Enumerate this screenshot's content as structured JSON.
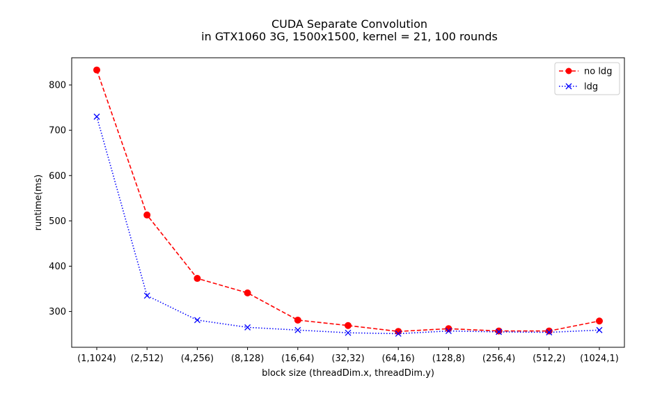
{
  "chart_data": {
    "type": "line",
    "title": "CUDA Separate Convolution",
    "subtitle": "in GTX1060 3G, 1500x1500, kernel = 21, 100 rounds",
    "xlabel": "block size (threadDim.x, threadDim.y)",
    "ylabel": "runtime(ms)",
    "categories": [
      "(1,1024)",
      "(2,512)",
      "(4,256)",
      "(8,128)",
      "(16,64)",
      "(32,32)",
      "(64,16)",
      "(128,8)",
      "(256,4)",
      "(512,2)",
      "(1024,1)"
    ],
    "ylim": [
      221,
      860
    ],
    "yticks": [
      300,
      400,
      500,
      600,
      700,
      800
    ],
    "grid": false,
    "legend_position": "top-right",
    "series": [
      {
        "name": "no ldg",
        "color": "#ff0000",
        "marker": "circle",
        "linestyle": "dashed",
        "values": [
          833,
          513,
          373,
          341,
          281,
          269,
          256,
          262,
          257,
          257,
          279
        ]
      },
      {
        "name": "ldg",
        "color": "#0000ff",
        "marker": "x",
        "linestyle": "dotted",
        "values": [
          730,
          335,
          281,
          265,
          259,
          253,
          251,
          257,
          255,
          254,
          259
        ]
      }
    ]
  }
}
